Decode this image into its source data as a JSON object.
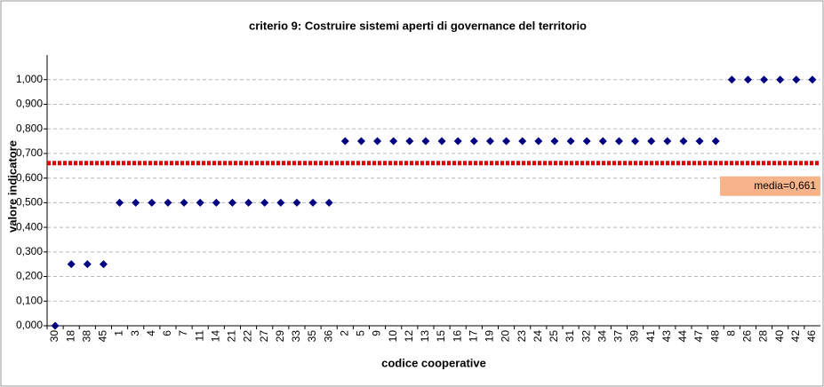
{
  "chart_data": {
    "type": "scatter",
    "title": "criterio 9: Costruire sistemi aperti di governance del territorio",
    "x_label": "codice cooperative",
    "y_label": "valore indicatore",
    "categories": [
      "30",
      "18",
      "38",
      "45",
      "1",
      "3",
      "4",
      "6",
      "7",
      "11",
      "14",
      "21",
      "22",
      "27",
      "29",
      "33",
      "35",
      "36",
      "2",
      "5",
      "9",
      "10",
      "12",
      "13",
      "15",
      "16",
      "17",
      "19",
      "20",
      "23",
      "24",
      "25",
      "31",
      "32",
      "34",
      "37",
      "39",
      "41",
      "43",
      "44",
      "47",
      "48",
      "8",
      "26",
      "28",
      "40",
      "42",
      "46"
    ],
    "values": [
      0,
      0.25,
      0.25,
      0.25,
      0.5,
      0.5,
      0.5,
      0.5,
      0.5,
      0.5,
      0.5,
      0.5,
      0.5,
      0.5,
      0.5,
      0.5,
      0.5,
      0.5,
      0.75,
      0.75,
      0.75,
      0.75,
      0.75,
      0.75,
      0.75,
      0.75,
      0.75,
      0.75,
      0.75,
      0.75,
      0.75,
      0.75,
      0.75,
      0.75,
      0.75,
      0.75,
      0.75,
      0.75,
      0.75,
      0.75,
      0.75,
      0.75,
      1,
      1,
      1,
      1,
      1,
      1
    ],
    "color": "#000080",
    "ylim": [
      0,
      1.1
    ],
    "yticks": [
      {
        "value": 0,
        "label": "0,000"
      },
      {
        "value": 0.1,
        "label": "0,100"
      },
      {
        "value": 0.2,
        "label": "0,200"
      },
      {
        "value": 0.3,
        "label": "0,300"
      },
      {
        "value": 0.4,
        "label": "0,400"
      },
      {
        "value": 0.5,
        "label": "0,500"
      },
      {
        "value": 0.6,
        "label": "0,600"
      },
      {
        "value": 0.7,
        "label": "0,700"
      },
      {
        "value": 0.8,
        "label": "0,800"
      },
      {
        "value": 0.9,
        "label": "0,900"
      },
      {
        "value": 1,
        "label": "1,000"
      }
    ],
    "grid": true,
    "reference_line": {
      "value": 0.661,
      "label": "media=0,661",
      "color": "#e00000"
    }
  }
}
